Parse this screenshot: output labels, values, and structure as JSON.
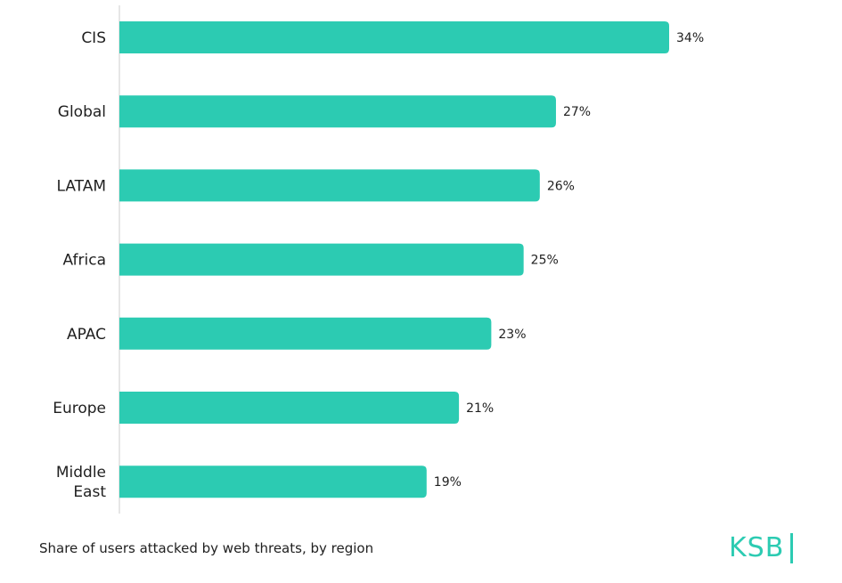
{
  "chart_data": {
    "type": "bar",
    "orientation": "horizontal",
    "categories": [
      [
        "CIS"
      ],
      [
        "Global"
      ],
      [
        "LATAM"
      ],
      [
        "Africa"
      ],
      [
        "APAC"
      ],
      [
        "Europe"
      ],
      [
        "Middle",
        "East"
      ]
    ],
    "values": [
      34,
      27,
      26,
      25,
      23,
      21,
      19
    ],
    "value_labels": [
      "34%",
      "27%",
      "26%",
      "25%",
      "23%",
      "21%",
      "19%"
    ],
    "unit": "%",
    "xlim": [
      0,
      35
    ],
    "grid": false,
    "legend": "none",
    "caption": "Share of users attacked by web threats, by region"
  },
  "colors": {
    "bar": "#2ccbb2",
    "axis": "#cccccc",
    "text": "#1f1f1f"
  },
  "brand": {
    "logo_text": "KSB",
    "logo_color": "#2ccbb2",
    "logo_icon": "ksb-logo"
  }
}
